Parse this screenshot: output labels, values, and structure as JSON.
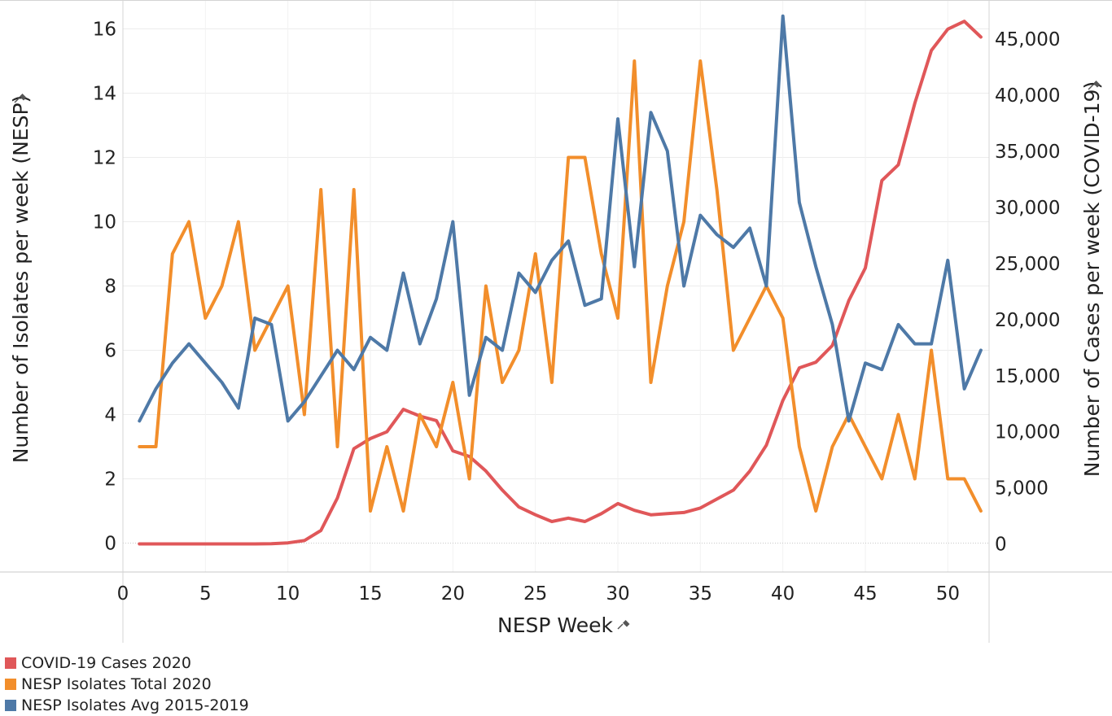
{
  "chart_data": {
    "type": "line",
    "xlabel": "NESP Week",
    "ylabel_left": "Number of Isolates per week (NESP)",
    "ylabel_right": "Number of Cases per week (COVID-19)",
    "xlim": [
      0,
      52.5
    ],
    "ylim_left": [
      -0.9,
      16.9
    ],
    "ylim_right": [
      -2500,
      48500
    ],
    "x_ticks": [
      0,
      5,
      10,
      15,
      20,
      25,
      30,
      35,
      40,
      45,
      50
    ],
    "y_left_ticks": [
      0,
      2,
      4,
      6,
      8,
      10,
      12,
      14,
      16
    ],
    "y_right_ticks": [
      0,
      5000,
      10000,
      15000,
      20000,
      25000,
      30000,
      35000,
      40000,
      45000
    ],
    "y_right_tick_labels": [
      "0",
      "5,000",
      "10,000",
      "15,000",
      "20,000",
      "25,000",
      "30,000",
      "35,000",
      "40,000",
      "45,000"
    ],
    "grid": true,
    "legend_position": "bottom-left",
    "x": [
      1,
      2,
      3,
      4,
      5,
      6,
      7,
      8,
      9,
      10,
      11,
      12,
      13,
      14,
      15,
      16,
      17,
      18,
      19,
      20,
      21,
      22,
      23,
      24,
      25,
      26,
      27,
      28,
      29,
      30,
      31,
      32,
      33,
      34,
      35,
      36,
      37,
      38,
      39,
      40,
      41,
      42,
      43,
      44,
      45,
      46,
      47,
      48,
      49,
      50,
      51,
      52
    ],
    "series": [
      {
        "name": "COVID-19 Cases 2020",
        "color": "#e05759",
        "axis": "right",
        "values": [
          0,
          0,
          0,
          0,
          0,
          0,
          0,
          0,
          20,
          100,
          300,
          1200,
          4100,
          8500,
          9400,
          10000,
          12000,
          11400,
          11000,
          8300,
          7800,
          6500,
          4800,
          3300,
          2600,
          2000,
          2300,
          2000,
          2700,
          3600,
          3000,
          2600,
          2700,
          2800,
          3200,
          4000,
          4800,
          6500,
          8800,
          12800,
          15700,
          16200,
          17700,
          21700,
          24600,
          32400,
          33800,
          39300,
          44000,
          45900,
          46600,
          45200
        ]
      },
      {
        "name": "NESP Isolates Total 2020",
        "color": "#f28e2b",
        "axis": "left",
        "values": [
          3,
          3,
          9,
          10,
          7,
          8,
          10,
          6,
          7,
          8,
          4,
          11,
          3,
          11,
          1,
          3,
          1,
          4,
          3,
          5,
          2,
          8,
          5,
          6,
          9,
          5,
          12,
          12,
          9,
          7,
          15,
          5,
          8,
          10,
          15,
          11,
          6,
          7,
          8,
          7,
          3,
          1,
          3,
          4,
          3,
          2,
          4,
          2,
          6,
          2,
          2,
          1
        ]
      },
      {
        "name": "NESP Isolates Avg 2015-2019",
        "color": "#4e79a7",
        "axis": "left",
        "values": [
          3.8,
          4.8,
          5.6,
          6.2,
          5.6,
          5.0,
          4.2,
          7.0,
          6.8,
          3.8,
          4.4,
          5.2,
          6.0,
          5.4,
          6.4,
          6.0,
          8.4,
          6.2,
          7.6,
          10.0,
          4.6,
          6.4,
          6.0,
          8.4,
          7.8,
          8.8,
          9.4,
          7.4,
          7.6,
          13.2,
          8.6,
          13.4,
          12.2,
          8.0,
          10.2,
          9.6,
          9.2,
          9.8,
          8.0,
          16.4,
          10.6,
          8.6,
          6.8,
          3.8,
          5.6,
          5.4,
          6.8,
          6.2,
          6.2,
          8.8,
          4.8,
          6.0
        ]
      }
    ]
  }
}
